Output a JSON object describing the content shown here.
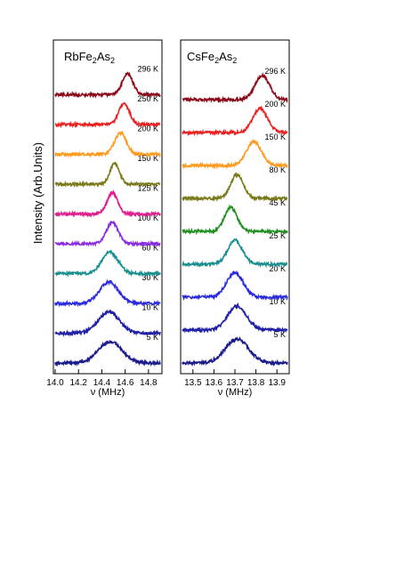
{
  "figure": {
    "ylabel": "Intensity (Arb.Units)"
  },
  "chart_data": [
    {
      "type": "line",
      "title": "RbFe2As2",
      "title_parts": {
        "base": "RbFe",
        "sub1": "2",
        "mid": "As",
        "sub2": "2"
      },
      "xlabel": "ν (MHz)",
      "xlim": [
        14.0,
        14.9
      ],
      "xticks": [
        "14.0",
        "14.2",
        "14.4",
        "14.6",
        "14.8"
      ],
      "xtick_values": [
        14.0,
        14.2,
        14.4,
        14.6,
        14.8
      ],
      "grid": false,
      "series": [
        {
          "name": "5 K",
          "color": "#1a1a8c",
          "center": 14.47,
          "width": 0.1
        },
        {
          "name": "10 K",
          "color": "#1f1fa8",
          "center": 14.46,
          "width": 0.09
        },
        {
          "name": "30 K",
          "color": "#2a2ae0",
          "center": 14.46,
          "width": 0.08
        },
        {
          "name": "60 K",
          "color": "#1a8f8f",
          "center": 14.47,
          "width": 0.07
        },
        {
          "name": "100 K",
          "color": "#8a2be2",
          "center": 14.49,
          "width": 0.05
        },
        {
          "name": "125 K",
          "color": "#e0208f",
          "center": 14.49,
          "width": 0.045
        },
        {
          "name": "150 K",
          "color": "#7a7a1a",
          "center": 14.51,
          "width": 0.04
        },
        {
          "name": "200 K",
          "color": "#ff9a1f",
          "center": 14.56,
          "width": 0.05
        },
        {
          "name": "250 K",
          "color": "#e82020",
          "center": 14.59,
          "width": 0.045
        },
        {
          "name": "296 K",
          "color": "#8b0a1a",
          "center": 14.62,
          "width": 0.045
        }
      ]
    },
    {
      "type": "line",
      "title": "CsFe2As2",
      "title_parts": {
        "base": "CsFe",
        "sub1": "2",
        "mid": "As",
        "sub2": "2"
      },
      "xlabel": "ν (MHz)",
      "xlim": [
        13.45,
        13.95
      ],
      "xticks": [
        "13.5",
        "13.6",
        "13.7",
        "13.8",
        "13.9"
      ],
      "xtick_values": [
        13.5,
        13.6,
        13.7,
        13.8,
        13.9
      ],
      "grid": false,
      "series": [
        {
          "name": "5 K",
          "color": "#1a1a8c",
          "center": 13.71,
          "width": 0.055
        },
        {
          "name": "10 K",
          "color": "#1f1fa8",
          "center": 13.71,
          "width": 0.045
        },
        {
          "name": "20 K",
          "color": "#2a2ae0",
          "center": 13.7,
          "width": 0.04
        },
        {
          "name": "25 K",
          "color": "#1a8f8f",
          "center": 13.7,
          "width": 0.035
        },
        {
          "name": "45 K",
          "color": "#1f8f1f",
          "center": 13.68,
          "width": 0.03
        },
        {
          "name": "80 K",
          "color": "#7a7a1a",
          "center": 13.71,
          "width": 0.03
        },
        {
          "name": "150 K",
          "color": "#ff9a1f",
          "center": 13.79,
          "width": 0.035
        },
        {
          "name": "200 K",
          "color": "#e82020",
          "center": 13.82,
          "width": 0.035
        },
        {
          "name": "296 K",
          "color": "#8b0a1a",
          "center": 13.83,
          "width": 0.035
        }
      ]
    }
  ]
}
